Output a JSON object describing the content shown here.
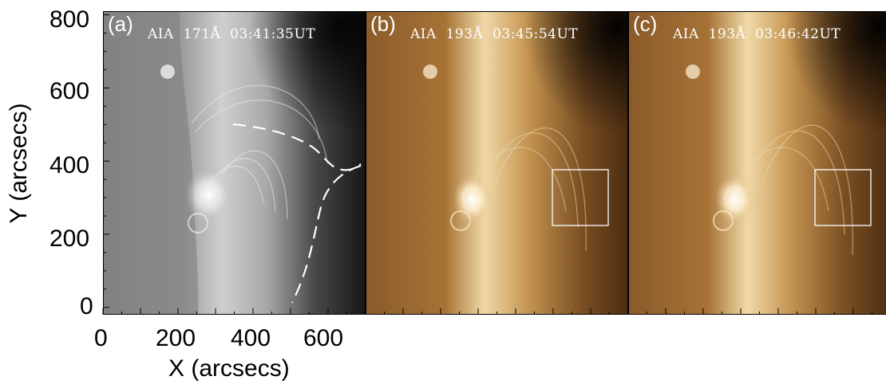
{
  "figure": {
    "panels": [
      {
        "id": "a",
        "label": "(a)",
        "instrument": "AIA",
        "wavelength": "171Å",
        "time": "03:41:35UT"
      },
      {
        "id": "b",
        "label": "(b)",
        "instrument": "AIA",
        "wavelength": "193Å",
        "time": "03:45:54UT"
      },
      {
        "id": "c",
        "label": "(c)",
        "instrument": "AIA",
        "wavelength": "193Å",
        "time": "03:46:42UT"
      }
    ],
    "x_axis": {
      "title": "X (arcsecs)",
      "ticks": [
        "0",
        "200",
        "400",
        "600"
      ],
      "range": [
        0,
        700
      ]
    },
    "y_axis": {
      "title": "Y (arcsecs)",
      "ticks": [
        "0",
        "200",
        "400",
        "600",
        "800"
      ],
      "range": [
        -20,
        810
      ]
    },
    "colors": {
      "panel_a_colormap": "grayscale",
      "panel_bc_colormap": "sdoaia193",
      "overlay": "#ffffff"
    }
  }
}
